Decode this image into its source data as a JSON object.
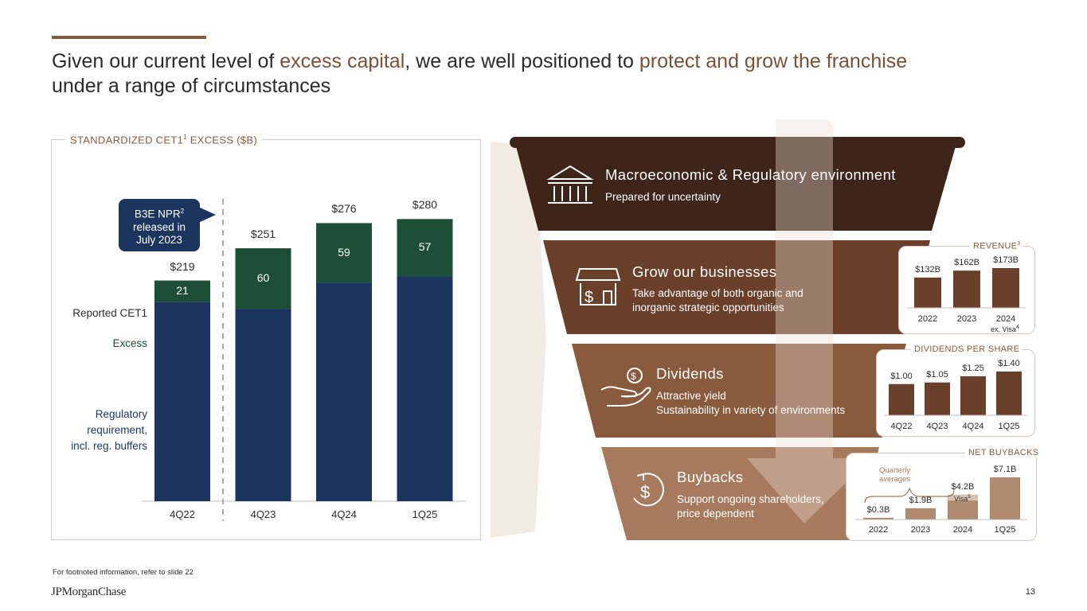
{
  "title": {
    "part1": "Given our current level of ",
    "highlight1": "excess capital",
    "part2": ", we are well positioned to ",
    "highlight2": "protect and grow the franchise",
    "part3": "under a range of circumstances"
  },
  "left_chart": {
    "title_main": "STANDARDIZED CET1",
    "title_sup": "1",
    "title_tail": " EXCESS ($B)",
    "legend_reported": "Reported CET1",
    "legend_excess": "Excess",
    "legend_regulatory_lines": [
      "Regulatory",
      "requirement,",
      "incl. reg. buffers"
    ],
    "callout_line1": "B3E NPR",
    "callout_sup": "2",
    "callout_line2": "released in",
    "callout_line3": "July 2023",
    "colors": {
      "requirement": "#1b355f",
      "excess": "#1d4f37"
    }
  },
  "chart_data": [
    {
      "type": "bar",
      "title": "STANDARDIZED CET1 EXCESS ($B)",
      "categories": [
        "4Q22",
        "4Q23",
        "4Q24",
        "1Q25"
      ],
      "series": [
        {
          "name": "Regulatory requirement, incl. reg. buffers",
          "values": [
            198,
            191,
            217,
            223
          ]
        },
        {
          "name": "Excess",
          "values": [
            21,
            60,
            59,
            57
          ]
        }
      ],
      "totals": [
        "$219",
        "$251",
        "$276",
        "$280"
      ],
      "excess_labels": [
        "21",
        "60",
        "59",
        "57"
      ],
      "ylim": [
        0,
        300
      ]
    },
    {
      "type": "bar",
      "title": "REVENUE",
      "title_sup": "3",
      "categories": [
        "2022",
        "2023",
        "2024"
      ],
      "values": [
        132,
        162,
        173
      ],
      "value_labels": [
        "$132B",
        "$162B",
        "$173B"
      ],
      "note": "ex. Visa",
      "note_sup": "4",
      "ylim": [
        0,
        200
      ]
    },
    {
      "type": "bar",
      "title": "DIVIDENDS PER SHARE",
      "categories": [
        "4Q22",
        "4Q23",
        "4Q24",
        "1Q25"
      ],
      "values": [
        1.0,
        1.05,
        1.25,
        1.4
      ],
      "value_labels": [
        "$1.00",
        "$1.05",
        "$1.25",
        "$1.40"
      ],
      "ylim": [
        0,
        1.6
      ]
    },
    {
      "type": "bar",
      "title": "NET BUYBACKS",
      "categories": [
        "2022",
        "2023",
        "2024",
        "1Q25"
      ],
      "values": [
        0.3,
        1.9,
        4.2,
        7.1
      ],
      "visa_portion_2024": 1.0,
      "value_labels": [
        "$0.3B",
        "$1.9B",
        "$4.2B",
        "$7.1B"
      ],
      "visa_label": "Visa",
      "visa_sup": "5",
      "bracket_label_lines": [
        "Quarterly",
        "averages"
      ],
      "ylim": [
        0,
        8
      ]
    }
  ],
  "funnel": {
    "tiers": [
      {
        "title": "Macroeconomic & Regulatory environment",
        "subtitle_lines": [
          "Prepared for uncertainty"
        ],
        "icon": "bank-building-icon",
        "color": "#3f2519"
      },
      {
        "title": "Grow our businesses",
        "subtitle_lines": [
          "Take advantage of both organic and",
          "inorganic strategic opportunities"
        ],
        "icon": "storefront-dollar-icon",
        "color": "#6b402a"
      },
      {
        "title": "Dividends",
        "subtitle_lines": [
          "Attractive yield",
          "Sustainability in variety of environments"
        ],
        "icon": "hand-coin-icon",
        "color": "#8a5a3c"
      },
      {
        "title": "Buybacks",
        "subtitle_lines": [
          "Support ongoing shareholders,",
          "price dependent"
        ],
        "icon": "dollar-circle-icon",
        "color": "#a77a5d"
      }
    ],
    "mini_colors": {
      "bar": "#6b402a",
      "visa": "#d8c3b2",
      "buyback": "#b08a70"
    }
  },
  "footer": {
    "footnote": "For footnoted information, refer to slide 22",
    "logo": "JPMorganChase",
    "page_number": "13"
  }
}
